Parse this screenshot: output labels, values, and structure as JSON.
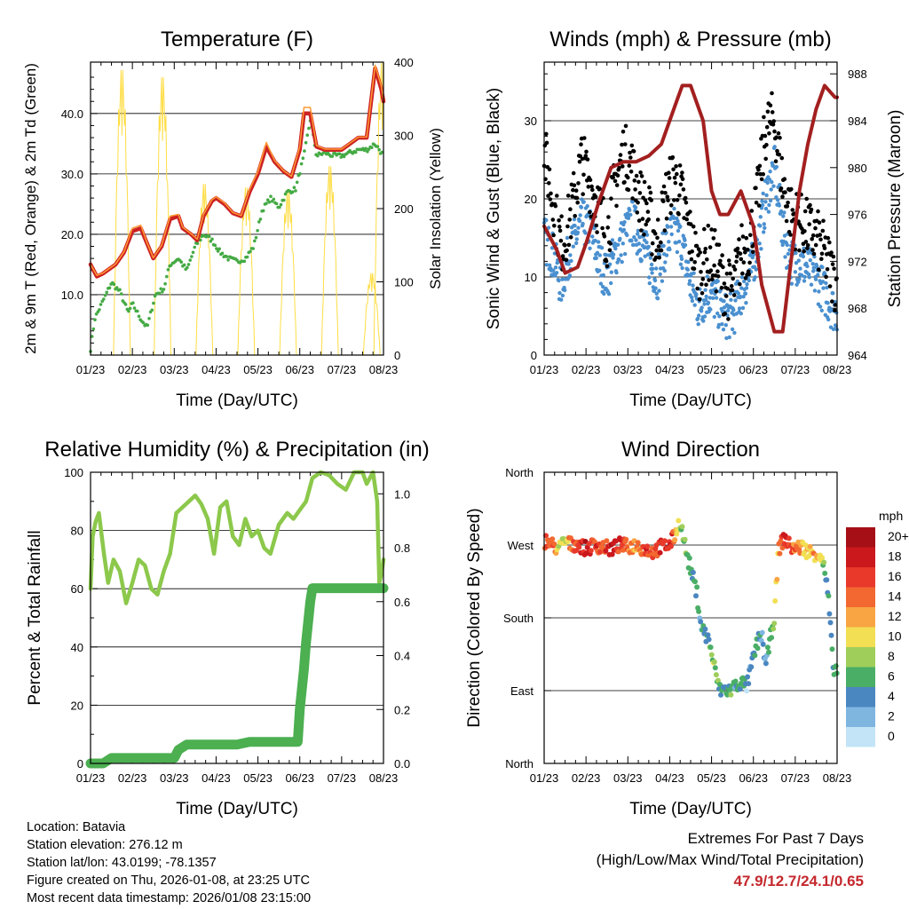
{
  "chart_data": [
    {
      "type": "line",
      "title": "Temperature (F)",
      "xlabel": "Time (Day/UTC)",
      "ylabel": "2m & 9m T (Red, Orange) & 2m Td (Green)",
      "y2label": "Solar Insolation (Yellow)",
      "x_ticks": [
        "01/23",
        "02/23",
        "03/23",
        "04/23",
        "05/23",
        "06/23",
        "07/23",
        "08/23"
      ],
      "ylim": [
        0,
        48.5
      ],
      "y_ticks": [
        "10.0",
        "20.0",
        "30.0",
        "40.0"
      ],
      "y2lim": [
        0,
        400
      ],
      "y2_ticks": [
        "0",
        "100",
        "200",
        "300",
        "400"
      ],
      "grid": true,
      "series": [
        {
          "name": "2m T",
          "color": "#cc2222",
          "x": [
            0,
            0.15,
            0.3,
            0.6,
            0.8,
            1.0,
            1.2,
            1.35,
            1.5,
            1.7,
            1.9,
            2.1,
            2.2,
            2.4,
            2.55,
            2.7,
            2.9,
            3.0,
            3.2,
            3.4,
            3.6,
            3.8,
            4.0,
            4.2,
            4.4,
            4.6,
            4.8,
            5.0,
            5.1,
            5.25,
            5.4,
            5.6,
            5.8,
            6.0,
            6.2,
            6.4,
            6.6,
            6.8,
            6.95,
            7.0
          ],
          "values": [
            15,
            13,
            13.5,
            15,
            17,
            20.5,
            21,
            18.5,
            16,
            18,
            22.5,
            23,
            21,
            20,
            19,
            23,
            25.5,
            26,
            25,
            23.5,
            23,
            27,
            30,
            34.5,
            32,
            30.5,
            29.5,
            34,
            40,
            40,
            34.5,
            34,
            34,
            34,
            35,
            36,
            36,
            47.5,
            44,
            42
          ]
        },
        {
          "name": "9m T",
          "color": "#ff9933",
          "x": [
            0,
            0.15,
            0.3,
            0.6,
            0.8,
            1.0,
            1.2,
            1.35,
            1.5,
            1.7,
            1.9,
            2.1,
            2.2,
            2.4,
            2.55,
            2.7,
            2.9,
            3.0,
            3.2,
            3.4,
            3.6,
            3.8,
            4.0,
            4.2,
            4.4,
            4.6,
            4.8,
            5.0,
            5.1,
            5.25,
            5.4,
            5.6,
            5.8,
            6.0,
            6.2,
            6.4,
            6.6,
            6.8,
            6.95,
            7.0
          ],
          "values": [
            15,
            13.2,
            13.6,
            15.1,
            17.1,
            21,
            21.5,
            18.6,
            16.1,
            18.2,
            23,
            23.3,
            21.2,
            20.1,
            19.2,
            23.3,
            25.7,
            26.2,
            25.2,
            23.6,
            23.1,
            27.4,
            30.4,
            35.2,
            32.2,
            30.6,
            29.6,
            34.5,
            41,
            41,
            34.7,
            34.1,
            34.1,
            34.1,
            35.1,
            36.1,
            36.1,
            48,
            44.5,
            42.3
          ]
        },
        {
          "name": "2m Td",
          "color": "#44aa44",
          "x": [
            0,
            0.1,
            0.3,
            0.5,
            0.7,
            0.9,
            1.0,
            1.2,
            1.35,
            1.55,
            1.75,
            1.9,
            2.1,
            2.3,
            2.5,
            2.7,
            2.9,
            3.1,
            3.3,
            3.5,
            3.7,
            3.9,
            4.1,
            4.3,
            4.5,
            4.7,
            4.9,
            5.1,
            5.25,
            5.4,
            5.6,
            5.8,
            6.0,
            6.2,
            6.4,
            6.6,
            6.8,
            6.95,
            7.0
          ],
          "values": [
            1,
            6,
            9,
            12,
            10.5,
            7,
            8.5,
            6,
            4.5,
            10,
            11,
            15,
            16,
            14,
            18,
            20,
            19,
            17,
            16,
            15.5,
            16,
            18,
            24,
            26,
            24.5,
            27,
            27.5,
            33,
            39,
            33,
            33.5,
            33,
            33,
            33.5,
            34,
            34,
            35,
            33.5,
            33
          ]
        },
        {
          "name": "Solar Insolation",
          "color": "#ffdd44",
          "axis": "y2",
          "peak_days": [
            0.75,
            1.72,
            2.72,
            3.72,
            4.72,
            5.72,
            6.72,
            6.97
          ],
          "peaks": [
            400,
            390,
            240,
            235,
            230,
            265,
            115,
            410
          ]
        }
      ]
    },
    {
      "type": "scatter",
      "title": "Winds (mph) & Pressure (mb)",
      "xlabel": "Time (Day/UTC)",
      "ylabel": "Sonic Wind & Gust (Blue, Black)",
      "y2label": "Station Pressure (Maroon)",
      "x_ticks": [
        "01/23",
        "02/23",
        "03/23",
        "04/23",
        "05/23",
        "06/23",
        "07/23",
        "08/23"
      ],
      "ylim": [
        0,
        37.5
      ],
      "y_ticks": [
        "0",
        "10",
        "20",
        "30"
      ],
      "y2lim": [
        964,
        989
      ],
      "y2_ticks": [
        "964",
        "968",
        "972",
        "976",
        "980",
        "984",
        "988"
      ],
      "grid": true,
      "series": [
        {
          "name": "Sonic Wind",
          "color": "#4a90d0",
          "x": [
            0,
            0.2,
            0.4,
            0.6,
            0.9,
            1.1,
            1.3,
            1.5,
            1.7,
            1.9,
            2.1,
            2.3,
            2.5,
            2.7,
            2.9,
            3.1,
            3.3,
            3.5,
            3.7,
            3.9,
            4.1,
            4.3,
            4.5,
            4.7,
            4.9,
            5.1,
            5.3,
            5.5,
            5.7,
            5.9,
            6.1,
            6.3,
            6.5,
            6.7,
            6.9,
            7.0
          ],
          "values": [
            15,
            13,
            9,
            13,
            17,
            16,
            12,
            10,
            13,
            15,
            17,
            15,
            12,
            10,
            14,
            16,
            14,
            9,
            6,
            8,
            7,
            5,
            5,
            8,
            10,
            14,
            20,
            24,
            16,
            12,
            12,
            11,
            10,
            8,
            6,
            6
          ]
        },
        {
          "name": "Gust",
          "color": "#000000",
          "x": [
            0,
            0.2,
            0.4,
            0.6,
            0.9,
            1.1,
            1.3,
            1.5,
            1.7,
            1.9,
            2.1,
            2.3,
            2.5,
            2.7,
            2.9,
            3.1,
            3.3,
            3.5,
            3.7,
            3.9,
            4.1,
            4.3,
            4.5,
            4.7,
            4.9,
            5.1,
            5.3,
            5.5,
            5.7,
            5.9,
            6.1,
            6.3,
            6.5,
            6.7,
            6.9,
            7.0
          ],
          "values": [
            26,
            20,
            14,
            17,
            25,
            22,
            19,
            15,
            22,
            26,
            24,
            20,
            18,
            14,
            20,
            23,
            20,
            15,
            11,
            13,
            12,
            9,
            8,
            13,
            14,
            20,
            29,
            30,
            22,
            18,
            17,
            16,
            15,
            13,
            10,
            9
          ]
        },
        {
          "name": "Station Pressure",
          "color": "#a31f1f",
          "axis": "y2",
          "x": [
            0,
            0.3,
            0.5,
            0.8,
            1.0,
            1.3,
            1.6,
            1.9,
            2.2,
            2.5,
            2.8,
            3.1,
            3.3,
            3.5,
            3.8,
            4.0,
            4.2,
            4.4,
            4.7,
            5.0,
            5.2,
            5.5,
            5.7,
            5.9,
            6.1,
            6.3,
            6.5,
            6.7,
            6.95,
            7.0
          ],
          "values": [
            975,
            973,
            971,
            971.5,
            973.5,
            977,
            980,
            980.5,
            980.5,
            981,
            982,
            985,
            987,
            987,
            984,
            978,
            976,
            976,
            978,
            975,
            970,
            966,
            966,
            972,
            978,
            982,
            985,
            987,
            986,
            986
          ]
        }
      ]
    },
    {
      "type": "line",
      "title": "Relative Humidity (%) & Precipitation (in)",
      "xlabel": "Time (Day/UTC)",
      "ylabel": "Percent & Total Rainfall",
      "x_ticks": [
        "01/23",
        "02/23",
        "03/23",
        "04/23",
        "05/23",
        "06/23",
        "07/23",
        "08/23"
      ],
      "ylim": [
        0,
        100
      ],
      "y_ticks": [
        "0",
        "20",
        "40",
        "60",
        "80",
        "100"
      ],
      "y2lim": [
        0,
        1.08
      ],
      "y2_ticks": [
        "0.0",
        "0.2",
        "0.4",
        "0.6",
        "0.8",
        "1.0"
      ],
      "grid": true,
      "series": [
        {
          "name": "Relative Humidity",
          "color": "#8cc84b",
          "x": [
            0,
            0.05,
            0.12,
            0.2,
            0.32,
            0.42,
            0.55,
            0.7,
            0.85,
            1.0,
            1.15,
            1.3,
            1.45,
            1.6,
            1.75,
            1.9,
            2.05,
            2.2,
            2.35,
            2.5,
            2.65,
            2.8,
            2.95,
            3.1,
            3.25,
            3.4,
            3.55,
            3.7,
            3.85,
            4.0,
            4.15,
            4.3,
            4.5,
            4.7,
            4.85,
            5.0,
            5.15,
            5.3,
            5.5,
            5.7,
            5.9,
            6.1,
            6.3,
            6.5,
            6.6,
            6.75,
            6.85,
            6.9,
            6.95,
            7.0
          ],
          "values": [
            60,
            78,
            83,
            86,
            72,
            62,
            70,
            66,
            55,
            62,
            70,
            68,
            60,
            58,
            66,
            72,
            86,
            88,
            90,
            92,
            89,
            84,
            72,
            88,
            90,
            78,
            75,
            84,
            78,
            80,
            74,
            72,
            82,
            86,
            84,
            87,
            90,
            98,
            100,
            99,
            96,
            94,
            100,
            100,
            96,
            100,
            90,
            62,
            65,
            70
          ]
        },
        {
          "name": "Total Precipitation",
          "color": "#4caf50",
          "axis": "y2",
          "x": [
            0,
            0.3,
            0.5,
            1.0,
            1.5,
            2.0,
            2.1,
            2.3,
            2.5,
            3.0,
            3.5,
            3.8,
            4.0,
            4.5,
            4.8,
            4.95,
            5.0,
            5.1,
            5.15,
            5.25,
            5.3,
            5.5,
            6.0,
            7.0
          ],
          "values": [
            0,
            0,
            0.02,
            0.02,
            0.02,
            0.02,
            0.05,
            0.07,
            0.07,
            0.07,
            0.07,
            0.08,
            0.08,
            0.08,
            0.08,
            0.08,
            0.2,
            0.35,
            0.45,
            0.6,
            0.65,
            0.65,
            0.65,
            0.65
          ]
        }
      ]
    },
    {
      "type": "scatter",
      "title": "Wind Direction",
      "xlabel": "Time (Day/UTC)",
      "ylabel": "Direction (Colored By Speed)",
      "x_ticks": [
        "01/23",
        "02/23",
        "03/23",
        "04/23",
        "05/23",
        "06/23",
        "07/23",
        "08/23"
      ],
      "y_ticks": [
        "North",
        "West",
        "South",
        "East",
        "North"
      ],
      "ylim": [
        0,
        360
      ],
      "grid": true,
      "series": [
        {
          "name": "Direction",
          "x": [
            0.05,
            0.2,
            0.35,
            0.5,
            0.65,
            0.8,
            1.0,
            1.2,
            1.4,
            1.6,
            1.8,
            2.0,
            2.2,
            2.4,
            2.6,
            2.8,
            3.0,
            3.1,
            3.25,
            3.4,
            3.55,
            3.65,
            3.75,
            3.85,
            3.95,
            4.1,
            4.2,
            4.3,
            4.45,
            4.55,
            4.7,
            4.85,
            4.95,
            5.1,
            5.2,
            5.3,
            5.45,
            5.5,
            5.6,
            5.75,
            5.85,
            6.0,
            6.15,
            6.3,
            6.45,
            6.6,
            6.7,
            6.8,
            6.9,
            7.0
          ],
          "values": [
            275,
            270,
            265,
            275,
            270,
            272,
            265,
            270,
            268,
            265,
            270,
            268,
            270,
            265,
            262,
            268,
            270,
            280,
            300,
            260,
            230,
            210,
            170,
            160,
            150,
            110,
            90,
            92,
            90,
            95,
            100,
            96,
            120,
            150,
            160,
            120,
            170,
            180,
            265,
            280,
            270,
            265,
            268,
            262,
            260,
            258,
            240,
            200,
            120,
            115
          ],
          "speeds": [
            16,
            14,
            10,
            8,
            14,
            16,
            18,
            16,
            14,
            18,
            16,
            14,
            12,
            16,
            14,
            16,
            18,
            14,
            8,
            6,
            4,
            6,
            4,
            4,
            6,
            8,
            4,
            4,
            6,
            4,
            6,
            2,
            4,
            6,
            4,
            4,
            6,
            8,
            12,
            18,
            16,
            14,
            12,
            10,
            12,
            10,
            6,
            4,
            4,
            6
          ]
        }
      ],
      "legend": {
        "title": "mph",
        "labels": [
          "20+",
          "18",
          "16",
          "14",
          "12",
          "10",
          "8",
          "6",
          "4",
          "2",
          "0"
        ],
        "colors": [
          "#a50f15",
          "#cb181d",
          "#e8392b",
          "#f26830",
          "#f9a543",
          "#f2df54",
          "#9fce5a",
          "#4aae66",
          "#4a86c0",
          "#7fb6e0",
          "#c3e4f7"
        ]
      }
    }
  ],
  "info": {
    "location": "Location: Batavia",
    "elevation": "Station elevation: 276.12 m",
    "latlon": "Station lat/lon: 43.0199; -78.1357",
    "created": "Figure created on Thu, 2026-01-08, at 23:25 UTC",
    "recent": "Most recent data timestamp: 2026/01/08 23:15:00"
  },
  "extremes": {
    "line1": "Extremes For Past 7 Days",
    "line2": "(High/Low/Max Wind/Total Precipitation)",
    "values": "47.9/12.7/24.1/0.65"
  }
}
